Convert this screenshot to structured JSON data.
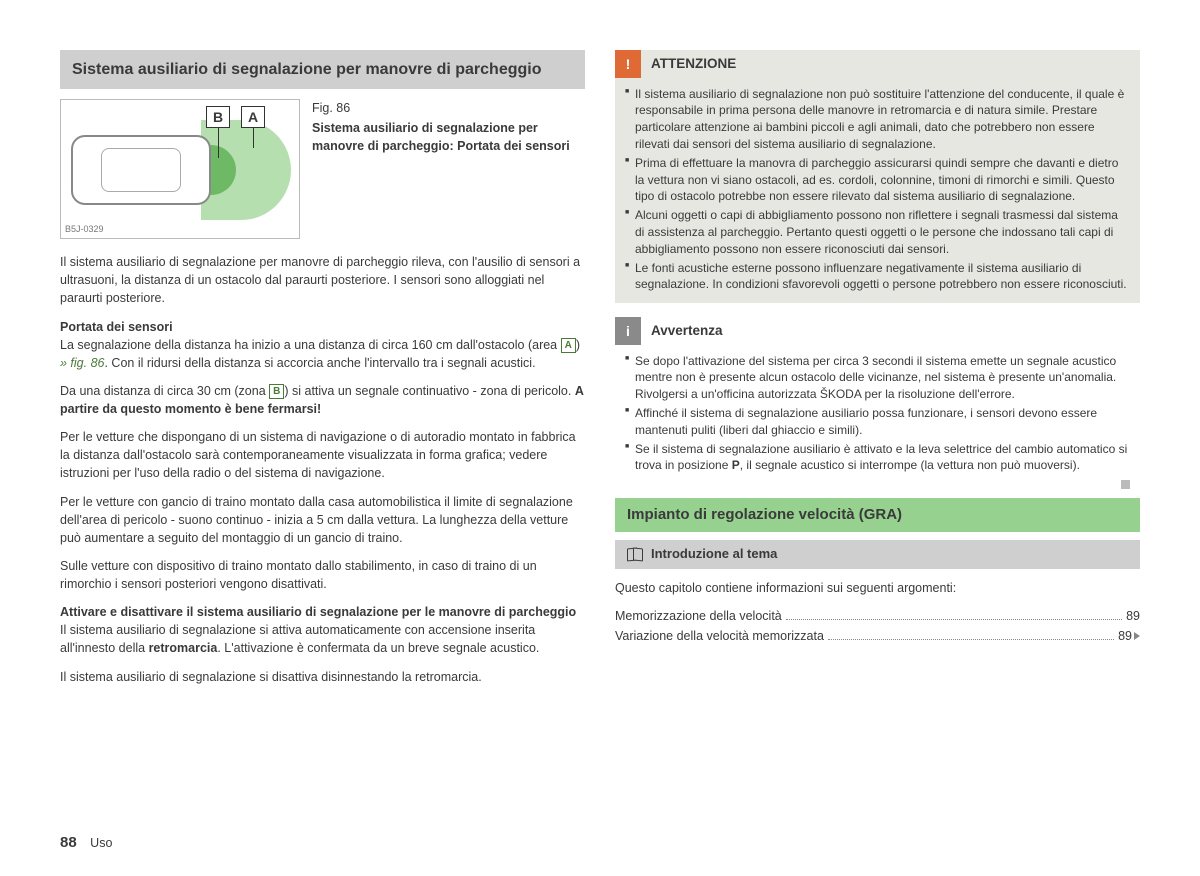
{
  "page": {
    "number": "88",
    "section": "Uso"
  },
  "left": {
    "title": "Sistema ausiliario di segnalazione per manovre di parcheggio",
    "figure": {
      "code": "B5J-0329",
      "labelA": "A",
      "labelB": "B",
      "num": "Fig. 86",
      "caption": "Sistema ausiliario di segnalazione per manovre di parcheggio: Portata dei sensori"
    },
    "intro": "Il sistema ausiliario di segnalazione per manovre di parcheggio rileva, con l'ausilio di sensori a ultrasuoni, la distanza di un ostacolo dal paraurti posteriore. I sensori sono alloggiati nel paraurti posteriore.",
    "h_portata": "Portata dei sensori",
    "portata_p1a": "La segnalazione della distanza ha inizio a una distanza di circa 160 cm dall'ostacolo (area ",
    "portata_p1b": ") ",
    "portata_ref": "» fig. 86",
    "portata_p1c": ". Con il ridursi della distanza si accorcia anche l'intervallo tra i segnali acustici.",
    "portata_p2a": "Da una distanza di circa 30 cm (zona ",
    "portata_p2b": ") si attiva un segnale continuativo - zona di pericolo. ",
    "portata_p2bold": "A partire da questo momento è bene fermarsi!",
    "p3": "Per le vetture che dispongano di un sistema di navigazione o di autoradio montato in fabbrica la distanza dall'ostacolo sarà contemporaneamente visualizzata in forma grafica; vedere istruzioni per l'uso della radio o del sistema di navigazione.",
    "p4": "Per le vetture con gancio di traino montato dalla casa automobilistica il limite di segnalazione dell'area di pericolo - suono continuo - inizia a 5 cm dalla vettura. La lunghezza della vetture può aumentare a seguito del montaggio di un gancio di traino.",
    "p5": "Sulle vetture con dispositivo di traino montato dallo stabilimento, in caso di traino di un rimorchio i sensori posteriori vengono disattivati.",
    "h_activate": "Attivare e disattivare il sistema ausiliario di segnalazione per le manovre di parcheggio",
    "p6a": "Il sistema ausiliario di segnalazione si attiva automaticamente con accensione inserita all'innesto della ",
    "p6bold": "retromarcia",
    "p6b": ". L'attivazione è confermata da un breve segnale acustico.",
    "p7": "Il sistema ausiliario di segnalazione si disattiva disinnestando la retromarcia."
  },
  "right": {
    "warn": {
      "icon": "!",
      "title": "ATTENZIONE",
      "colors": {
        "icon_bg": "#e06a36",
        "title_bg": "#e7e7e2",
        "body_bg": "#e7e7e2"
      },
      "items": [
        "Il sistema ausiliario di segnalazione non può sostituire l'attenzione del conducente, il quale è responsabile in prima persona delle manovre in retromarcia e di natura simile. Prestare particolare attenzione ai bambini piccoli e agli animali, dato che potrebbero non essere rilevati dai sensori del sistema ausiliario di segnalazione.",
        "Prima di effettuare la manovra di parcheggio assicurarsi quindi sempre che davanti e dietro la vettura non vi siano ostacoli, ad es. cordoli, colonnine, timoni di rimorchi e simili. Questo tipo di ostacolo potrebbe non essere rilevato dal sistema ausiliario di segnalazione.",
        "Alcuni oggetti o capi di abbigliamento possono non riflettere i segnali trasmessi dal sistema di assistenza al parcheggio. Pertanto questi oggetti o le persone che indossano tali capi di abbigliamento possono non essere riconosciuti dai sensori.",
        "Le fonti acustiche esterne possono influenzare negativamente il sistema ausiliario di segnalazione. In condizioni sfavorevoli oggetti o persone potrebbero non essere riconosciuti."
      ]
    },
    "note": {
      "icon": "i",
      "title": "Avvertenza",
      "colors": {
        "icon_bg": "#8a8a8a",
        "title_bg": "#ffffff",
        "body_bg": "#ffffff"
      },
      "items": [
        "Se dopo l'attivazione del sistema per circa 3 secondi il sistema emette un segnale acustico mentre non è presente alcun ostacolo delle vicinanze, nel sistema è presente un'anomalia. Rivolgersi a un'officina autorizzata ŠKODA per la risoluzione dell'errore.",
        "Affinché il sistema di segnalazione ausiliario possa funzionare, i sensori devono essere mantenuti puliti (liberi dal ghiaccio e simili)."
      ],
      "last_a": "Se il sistema di segnalazione ausiliario è attivato e la leva selettrice del cambio automatico si trova in posizione ",
      "last_bold": "P",
      "last_b": ", il segnale acustico si interrompe (la vettura non può muoversi)."
    },
    "gra": {
      "title": "Impianto di regolazione velocità (GRA)",
      "sub": "Introduzione al tema",
      "lead": "Questo capitolo contiene informazioni sui seguenti argomenti:",
      "toc": [
        {
          "label": "Memorizzazione della velocità",
          "page": "89"
        },
        {
          "label": "Variazione della velocità memorizzata",
          "page": "89"
        }
      ]
    }
  }
}
